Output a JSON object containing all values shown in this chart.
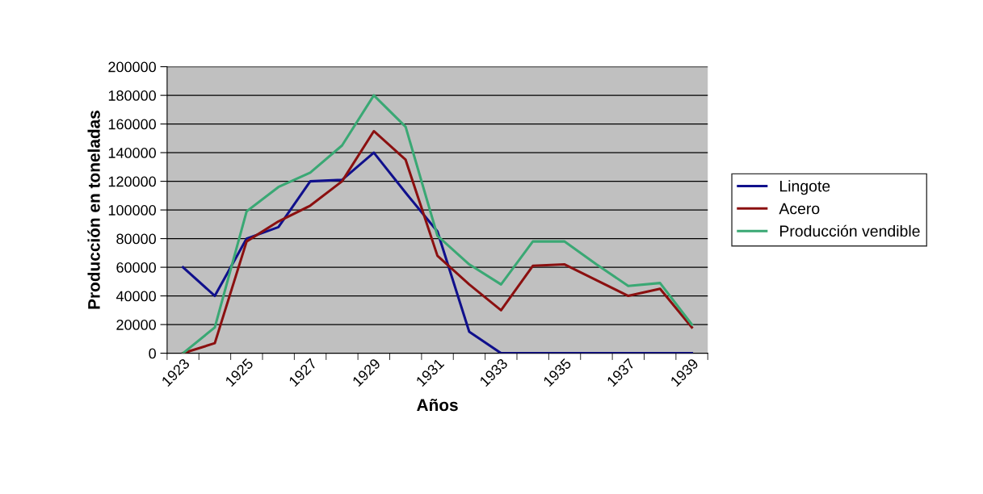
{
  "chart_data": {
    "type": "line",
    "xlabel": "Años",
    "ylabel": "Producción en toneladas",
    "categories": [
      "1923",
      null,
      "1925",
      null,
      "1927",
      null,
      "1929",
      null,
      "1931",
      null,
      "1933",
      null,
      "1935",
      null,
      "1937",
      null,
      "1939"
    ],
    "series": [
      {
        "name": "Lingote",
        "color": "#10108c",
        "values": [
          60000,
          40000,
          80000,
          88000,
          120000,
          121000,
          140000,
          112000,
          85000,
          15000,
          0,
          0,
          0,
          0,
          0,
          0,
          0
        ]
      },
      {
        "name": "Acero",
        "color": "#8b1010",
        "values": [
          0,
          7000,
          78000,
          92000,
          103000,
          120000,
          155000,
          135000,
          68000,
          48000,
          30000,
          61000,
          62000,
          51000,
          40000,
          45000,
          18000
        ]
      },
      {
        "name": "Producción vendible",
        "color": "#3aa874",
        "values": [
          0,
          18000,
          99000,
          116000,
          126000,
          145000,
          180000,
          158000,
          82000,
          62000,
          48000,
          78000,
          78000,
          62000,
          47000,
          49000,
          20000
        ]
      }
    ],
    "ylim": [
      0,
      200000
    ],
    "yticks": [
      0,
      20000,
      40000,
      60000,
      80000,
      100000,
      120000,
      140000,
      160000,
      180000,
      200000
    ],
    "grid": "y",
    "legend": "right"
  }
}
